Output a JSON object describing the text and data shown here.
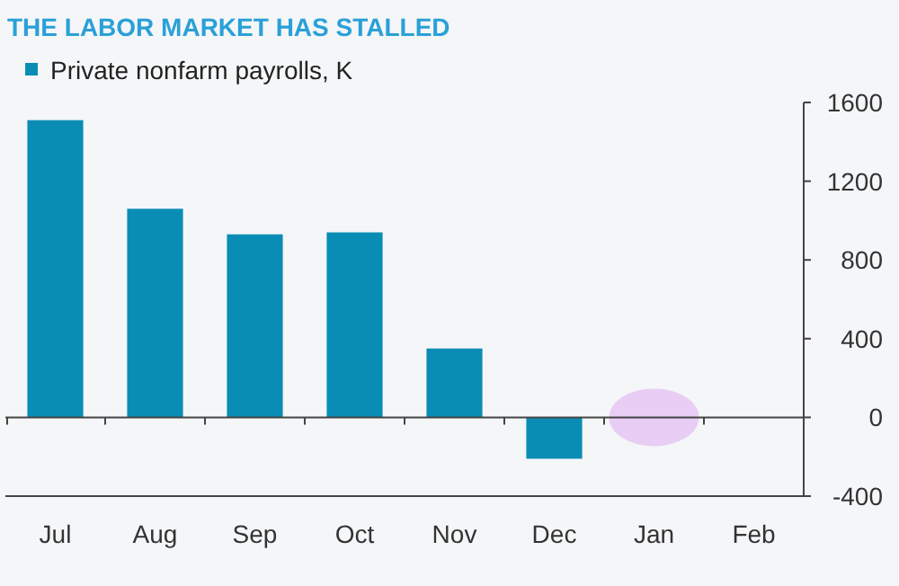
{
  "chart_data": {
    "type": "bar",
    "title": "THE LABOR MARKET HAS STALLED",
    "categories": [
      "Jul",
      "Aug",
      "Sep",
      "Oct",
      "Nov",
      "Dec",
      "Jan",
      "Feb"
    ],
    "series": [
      {
        "name": "Private nonfarm payrolls, K",
        "color": "#0a8db5",
        "values": [
          1510,
          1060,
          930,
          940,
          350,
          -210,
          0,
          null
        ]
      }
    ],
    "ref_lines": [
      {
        "axis": "y",
        "value": 0,
        "color": "#444444"
      }
    ],
    "ylim": [
      -400,
      1600
    ],
    "yticks": [
      -400,
      0,
      400,
      800,
      1200,
      1600
    ],
    "legend": "top left",
    "grid": false
  }
}
